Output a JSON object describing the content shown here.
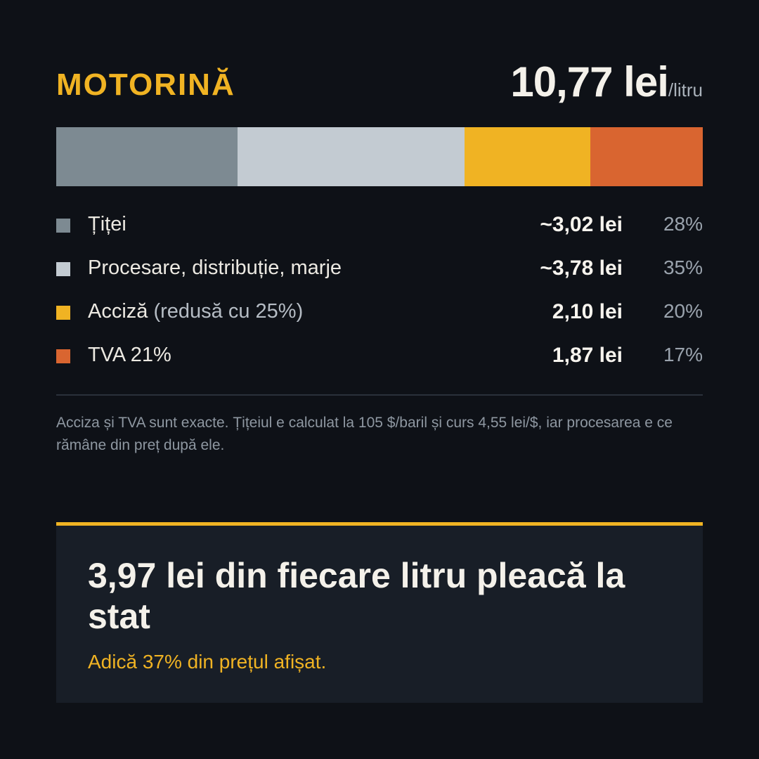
{
  "header": {
    "title": "MOTORINĂ",
    "price": "10,77 lei",
    "unit": "/litru"
  },
  "chart_data": {
    "type": "bar",
    "stacked": true,
    "orientation": "horizontal",
    "total": 10.77,
    "series": [
      {
        "name": "Țiței",
        "value": 3.02,
        "value_label": "~3,02 lei",
        "percent": 28,
        "percent_label": "28%",
        "color": "#7d8a92"
      },
      {
        "name": "Procesare, distribuție, marje",
        "value": 3.78,
        "value_label": "~3,78 lei",
        "percent": 35,
        "percent_label": "35%",
        "color": "#c3cbd2"
      },
      {
        "name": "Acciză",
        "note": "(redusă cu 25%)",
        "value": 2.1,
        "value_label": "2,10 lei",
        "percent": 20,
        "percent_label": "20%",
        "color": "#f0b323"
      },
      {
        "name": "TVA 21%",
        "value": 1.87,
        "value_label": "1,87 lei",
        "percent": 17,
        "percent_label": "17%",
        "color": "#d96530"
      }
    ]
  },
  "footnote": "Acciza și TVA sunt exacte. Țițeiul e calculat la 105 $/baril și curs 4,55 lei/$, iar procesarea e ce rămâne din preț după ele.",
  "callout": {
    "headline": "3,97 lei din fiecare litru pleacă la stat",
    "sub": "Adică 37% din prețul afișat.",
    "accent": "#f0b323"
  }
}
